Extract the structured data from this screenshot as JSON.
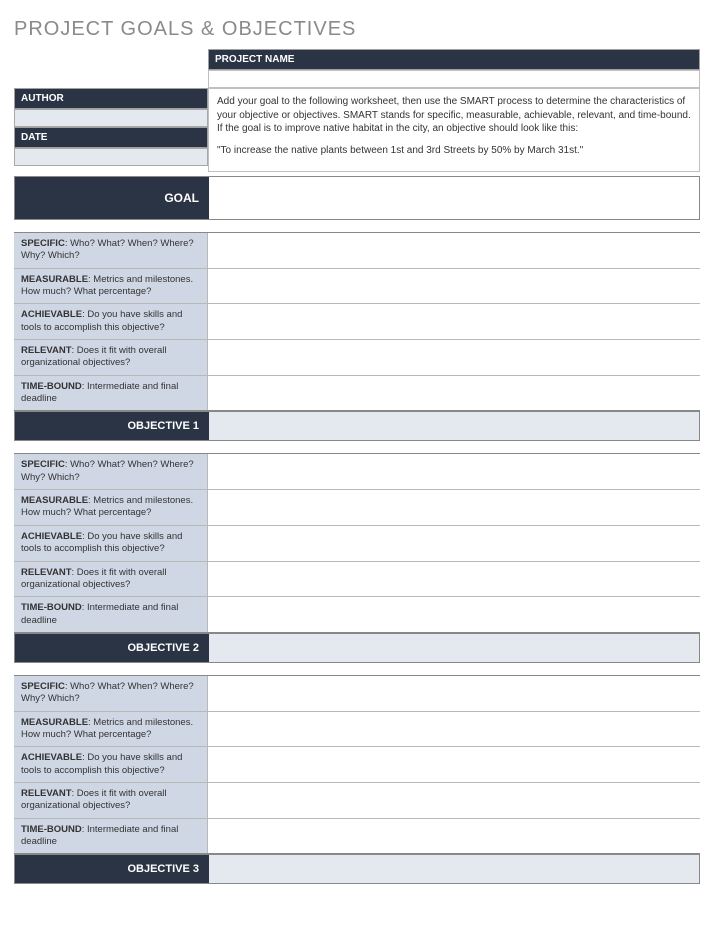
{
  "title": "PROJECT GOALS & OBJECTIVES",
  "fields": {
    "project_name_label": "PROJECT NAME",
    "author_label": "AUTHOR",
    "date_label": "DATE",
    "project_name_value": "",
    "author_value": "",
    "date_value": ""
  },
  "description": {
    "p1": "Add your goal to the following worksheet, then use the SMART process to determine the characteristics of your objective or objectives. SMART stands for specific, measurable, achievable, relevant, and time-bound. If the goal is to improve native habitat in the city, an objective should look like this:",
    "p2": "\"To increase the native plants between 1st and 3rd Streets by 50% by March 31st.\""
  },
  "goal_label": "GOAL",
  "goal_value": "",
  "smart": [
    {
      "bold": "SPECIFIC",
      "rest": ": Who? What? When? Where? Why? Which?"
    },
    {
      "bold": "MEASURABLE",
      "rest": ": Metrics and milestones. How much? What percentage?"
    },
    {
      "bold": "ACHIEVABLE",
      "rest": ": Do you have skills and tools to accomplish this objective?"
    },
    {
      "bold": "RELEVANT",
      "rest": ": Does it fit with overall organizational objectives?"
    },
    {
      "bold": "TIME-BOUND",
      "rest": ": Intermediate and final deadline"
    }
  ],
  "objectives": [
    {
      "label": "OBJECTIVE 1",
      "value": ""
    },
    {
      "label": "OBJECTIVE 2",
      "value": ""
    },
    {
      "label": "OBJECTIVE 3",
      "value": ""
    }
  ],
  "colors": {
    "dark_header": "#2a3444",
    "light_label": "#cfd6e4",
    "light_input": "#e4e8ef",
    "title_gray": "#8a8a8a",
    "border": "#a0a0a0"
  }
}
